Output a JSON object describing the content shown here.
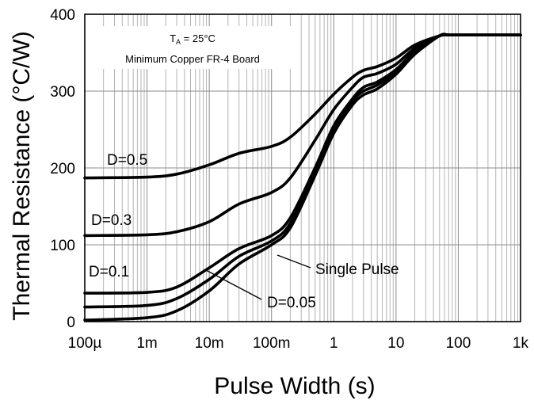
{
  "chart_data": {
    "type": "line",
    "xlabel": "Pulse Width (s)",
    "ylabel": "Thermal Resistance (°C/W)",
    "x_scale": "log",
    "xlim": [
      0.0001,
      1000
    ],
    "ylim": [
      0,
      400
    ],
    "grid": true,
    "x_tick_values": [
      0.0001,
      0.001,
      0.01,
      0.1,
      1,
      10,
      100,
      1000
    ],
    "x_tick_labels": [
      "100µ",
      "1m",
      "10m",
      "100m",
      "1",
      "10",
      "100",
      "1k"
    ],
    "y_ticks": [
      0,
      100,
      200,
      300,
      400
    ],
    "annotation": {
      "ta_symbol": "T",
      "ta_subscript": "A",
      "ta_value": " = 25°C",
      "board": "Minimum Copper FR-4 Board"
    },
    "series": [
      {
        "name": "D=0.5",
        "x": [
          0.0001,
          0.001,
          0.003,
          0.01,
          0.03,
          0.1,
          0.2,
          0.5,
          1,
          2,
          3,
          5,
          10,
          20,
          50,
          70,
          100,
          1000
        ],
        "y": [
          187,
          188,
          192,
          204,
          219,
          228,
          240,
          270,
          296,
          318,
          327,
          332,
          343,
          360,
          372,
          373,
          373,
          373
        ]
      },
      {
        "name": "D=0.3",
        "x": [
          0.0001,
          0.001,
          0.003,
          0.01,
          0.03,
          0.1,
          0.2,
          0.5,
          1,
          2,
          3,
          5,
          10,
          20,
          50,
          70,
          100,
          1000
        ],
        "y": [
          112,
          113,
          117,
          130,
          153,
          168,
          187,
          236,
          276,
          305,
          318,
          323,
          335,
          356,
          372,
          373,
          373,
          373
        ]
      },
      {
        "name": "D=0.1",
        "x": [
          0.0001,
          0.001,
          0.003,
          0.01,
          0.03,
          0.1,
          0.2,
          0.5,
          1,
          2,
          3,
          5,
          10,
          20,
          50,
          70,
          100,
          1000
        ],
        "y": [
          37,
          38,
          45,
          70,
          95,
          112,
          135,
          200,
          255,
          290,
          305,
          312,
          328,
          352,
          372,
          373,
          373,
          373
        ]
      },
      {
        "name": "D=0.05",
        "x": [
          0.0001,
          0.001,
          0.003,
          0.01,
          0.03,
          0.1,
          0.2,
          0.5,
          1,
          2,
          3,
          5,
          10,
          20,
          50,
          70,
          100,
          1000
        ],
        "y": [
          19,
          21,
          30,
          55,
          85,
          105,
          128,
          195,
          250,
          287,
          300,
          308,
          325,
          350,
          372,
          373,
          373,
          373
        ]
      },
      {
        "name": "Single Pulse",
        "x": [
          0.0001,
          0.001,
          0.003,
          0.01,
          0.03,
          0.1,
          0.2,
          0.5,
          1,
          2,
          3,
          5,
          10,
          20,
          50,
          70,
          100,
          1000
        ],
        "y": [
          2,
          5,
          14,
          40,
          75,
          100,
          122,
          190,
          245,
          282,
          295,
          303,
          322,
          348,
          372,
          373,
          373,
          373
        ]
      }
    ]
  }
}
